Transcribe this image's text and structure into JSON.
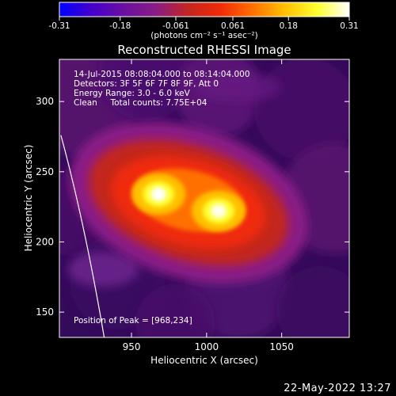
{
  "colorbar": {
    "ticks": [
      "-0.31",
      "-0.18",
      "-0.061",
      "0.061",
      "0.18",
      "0.31"
    ],
    "tick_values": [
      -0.31,
      -0.18,
      -0.061,
      0.061,
      0.18,
      0.31
    ],
    "unit_label": "(photons cm⁻² s⁻¹ asec⁻²)",
    "colors": [
      "#0000ff",
      "#4400cc",
      "#6a10a0",
      "#8a1c86",
      "#c2261f",
      "#f02a08",
      "#ff7000",
      "#ffc000",
      "#ffff30",
      "#ffffff"
    ]
  },
  "chart_data": {
    "type": "heatmap",
    "title": "Reconstructed RHESSI Image",
    "xlabel": "Heliocentric X (arcsec)",
    "ylabel": "Heliocentric Y (arcsec)",
    "xlim": [
      902,
      1095
    ],
    "ylim": [
      132,
      330
    ],
    "xticks": [
      950,
      1000,
      1050
    ],
    "yticks": [
      150,
      200,
      250,
      300
    ],
    "sources": [
      {
        "x": 968,
        "y": 234,
        "peak": 0.31
      },
      {
        "x": 1008,
        "y": 222,
        "peak": 0.28
      }
    ],
    "annotations": [
      "14-Jul-2015 08:08:04.000 to 08:14:04.000",
      "Detectors: 3F 5F 6F 7F 8F 9F, Att 0",
      "Energy Range: 3.0 - 6.0 keV",
      "Clean     Total counts: 7.75E+04"
    ],
    "peak_label": "Position of Peak = [968,234]",
    "limb_line": true
  },
  "footer": {
    "date": "22-May-2022 13:27"
  }
}
